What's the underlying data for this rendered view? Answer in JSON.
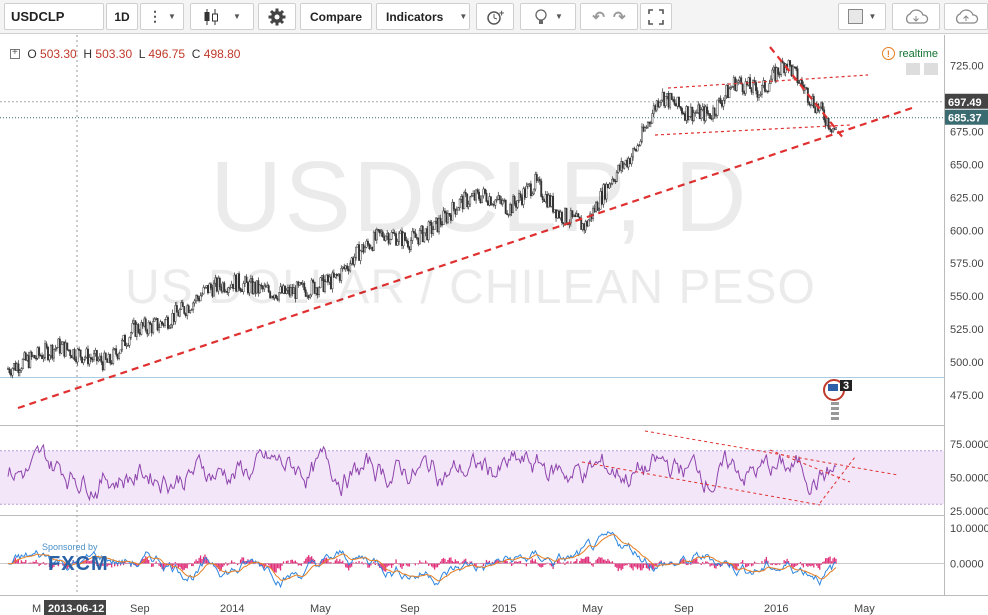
{
  "toolbar": {
    "symbol": "USDCLP",
    "interval": "1D",
    "compare_label": "Compare",
    "indicators_label": "Indicators"
  },
  "ohlc": {
    "o_label": "O",
    "o_value": "503.30",
    "h_label": "H",
    "h_value": "503.30",
    "l_label": "L",
    "l_value": "496.75",
    "c_label": "C",
    "c_value": "498.80"
  },
  "realtime_label": "realtime",
  "watermark": {
    "symbol_line": "USDCLP, D",
    "name_line": "US DOLLAR / CHILEAN PESO"
  },
  "price_axis": [
    "725.00",
    "700.00",
    "675.00",
    "650.00",
    "625.00",
    "600.00",
    "575.00",
    "550.00",
    "525.00",
    "500.00",
    "475.00"
  ],
  "price_tags": {
    "last": "697.49",
    "prev": "685.37"
  },
  "rsi_axis": [
    "75.0000",
    "50.0000",
    "25.0000"
  ],
  "macd_axis": [
    "10.0000",
    "0.0000"
  ],
  "time_axis": [
    "M",
    "2013-06-12",
    "Sep",
    "2014",
    "May",
    "Sep",
    "2015",
    "May",
    "Sep",
    "2016",
    "May"
  ],
  "badge_count": "3",
  "sponsor": {
    "label": "Sponsored by",
    "brand": "FXCM"
  },
  "colors": {
    "trend": "#e03030",
    "rsi": "#8e44ad",
    "rsi_band": "#f3e6f8",
    "macd_blue": "#2e86de",
    "macd_orange": "#e67e22",
    "hist": "#e0307a",
    "tag_dark": "#444",
    "tag_teal": "#3a6b70"
  },
  "chart_data": [
    {
      "type": "candlestick",
      "title": "USDCLP, D",
      "y_range": [
        460,
        740
      ],
      "points": [
        [
          "2013-06",
          495
        ],
        [
          "2013-07",
          503
        ],
        [
          "2013-08",
          512
        ],
        [
          "2013-09",
          505
        ],
        [
          "2013-10",
          499
        ],
        [
          "2013-11",
          525
        ],
        [
          "2013-12",
          528
        ],
        [
          "2014-01",
          540
        ],
        [
          "2014-02",
          556
        ],
        [
          "2014-03",
          561
        ],
        [
          "2014-04",
          555
        ],
        [
          "2014-05",
          552
        ],
        [
          "2014-06",
          556
        ],
        [
          "2014-07",
          562
        ],
        [
          "2014-08",
          584
        ],
        [
          "2014-09",
          598
        ],
        [
          "2014-10",
          592
        ],
        [
          "2014-11",
          602
        ],
        [
          "2014-12",
          621
        ],
        [
          "2015-01",
          627
        ],
        [
          "2015-02",
          617
        ],
        [
          "2015-03",
          636
        ],
        [
          "2015-04",
          612
        ],
        [
          "2015-05",
          603
        ],
        [
          "2015-06",
          638
        ],
        [
          "2015-07",
          660
        ],
        [
          "2015-08",
          703
        ],
        [
          "2015-09",
          690
        ],
        [
          "2015-10",
          688
        ],
        [
          "2015-11",
          713
        ],
        [
          "2015-12",
          705
        ],
        [
          "2016-01",
          728
        ],
        [
          "2016-02",
          700
        ],
        [
          "2016-03",
          675
        ]
      ]
    },
    {
      "type": "line",
      "title": "RSI",
      "y_range": [
        20,
        90
      ],
      "bands": [
        30,
        70
      ]
    },
    {
      "type": "line",
      "title": "MACD",
      "y_range": [
        -15,
        12
      ]
    }
  ]
}
